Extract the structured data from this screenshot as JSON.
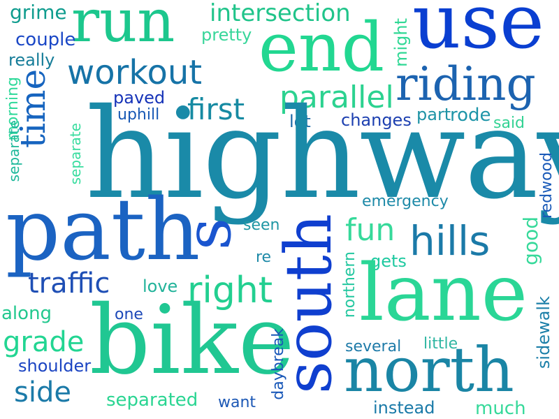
{
  "words": {
    "grime": {
      "text": "grime",
      "color": "#0f9c8e"
    },
    "run": {
      "text": "run",
      "color": "#1cc78d"
    },
    "intersection": {
      "text": "intersection",
      "color": "#20c48a"
    },
    "use": {
      "text": "use",
      "color": "#0a3fd1"
    },
    "couple": {
      "text": "couple",
      "color": "#1a47c6"
    },
    "pretty": {
      "text": "pretty",
      "color": "#38d69a"
    },
    "end": {
      "text": "end",
      "color": "#22d791"
    },
    "might": {
      "text": "might",
      "color": "#30d895"
    },
    "really": {
      "text": "really",
      "color": "#167d99"
    },
    "workout": {
      "text": "workout",
      "color": "#1673a7"
    },
    "riding": {
      "text": "riding",
      "color": "#1c63b0"
    },
    "morning": {
      "text": "morning",
      "color": "#2fd99a"
    },
    "time": {
      "text": "time",
      "color": "#1664bf"
    },
    "paved": {
      "text": "paved",
      "color": "#1633b8"
    },
    "first": {
      "text": "first",
      "color": "#168aa2"
    },
    "parallel": {
      "text": "parallel",
      "color": "#2cd290"
    },
    "uphill": {
      "text": "uphill",
      "color": "#1859b5"
    },
    "lot": {
      "text": "lot",
      "color": "#1a67a6"
    },
    "changes": {
      "text": "changes",
      "color": "#1c3fb0"
    },
    "part": {
      "text": "part",
      "color": "#1e93a5"
    },
    "rode": {
      "text": "rode",
      "color": "#1e95a8"
    },
    "said": {
      "text": "said",
      "color": "#33d293"
    },
    "separate_left": {
      "text": "separate",
      "color": "#37dc9e"
    },
    "separate_right": {
      "text": "separate",
      "color": "#1cb89a"
    },
    "highway": {
      "text": "highway",
      "color": "#1a8aa8"
    },
    "redwood": {
      "text": "redwood",
      "color": "#1a5ab8"
    },
    "emergency": {
      "text": "emergency",
      "color": "#1e8aa8"
    },
    "path": {
      "text": "path",
      "color": "#1b63c2"
    },
    "south": {
      "text": "south",
      "color": "#0f3fcf"
    },
    "s": {
      "text": "s",
      "color": "#1a55cf"
    },
    "seen": {
      "text": "seen",
      "color": "#1e96a3"
    },
    "fun": {
      "text": "fun",
      "color": "#36d99a"
    },
    "hills": {
      "text": "hills",
      "color": "#1b7aa8"
    },
    "good": {
      "text": "good",
      "color": "#36d99a"
    },
    "re": {
      "text": "re",
      "color": "#1e8aa8"
    },
    "gets": {
      "text": "gets",
      "color": "#1ec9a0"
    },
    "traffic": {
      "text": "traffic",
      "color": "#1f4fb5"
    },
    "love": {
      "text": "love",
      "color": "#22b39a"
    },
    "right": {
      "text": "right",
      "color": "#22cf90"
    },
    "northern": {
      "text": "northern",
      "color": "#24c7a0"
    },
    "lane": {
      "text": "lane",
      "color": "#2ad696"
    },
    "sidewalk": {
      "text": "sidewalk",
      "color": "#1c7fa8"
    },
    "along": {
      "text": "along",
      "color": "#22c88e"
    },
    "one": {
      "text": "one",
      "color": "#1c48b8"
    },
    "grade": {
      "text": "grade",
      "color": "#22d592"
    },
    "bike": {
      "text": "bike",
      "color": "#20c792"
    },
    "daybreak": {
      "text": "daybreak",
      "color": "#1857b8"
    },
    "several": {
      "text": "several",
      "color": "#1d7aa8"
    },
    "little": {
      "text": "little",
      "color": "#2fb6a2"
    },
    "shoulder": {
      "text": "shoulder",
      "color": "#1b44c2"
    },
    "north": {
      "text": "north",
      "color": "#1a85a5"
    },
    "side": {
      "text": "side",
      "color": "#1b7aa8"
    },
    "separated": {
      "text": "separated",
      "color": "#2ad592"
    },
    "want": {
      "text": "want",
      "color": "#1c58b5"
    },
    "instead": {
      "text": "instead",
      "color": "#1a7aa8"
    },
    "much": {
      "text": "much",
      "color": "#36d99a"
    }
  }
}
